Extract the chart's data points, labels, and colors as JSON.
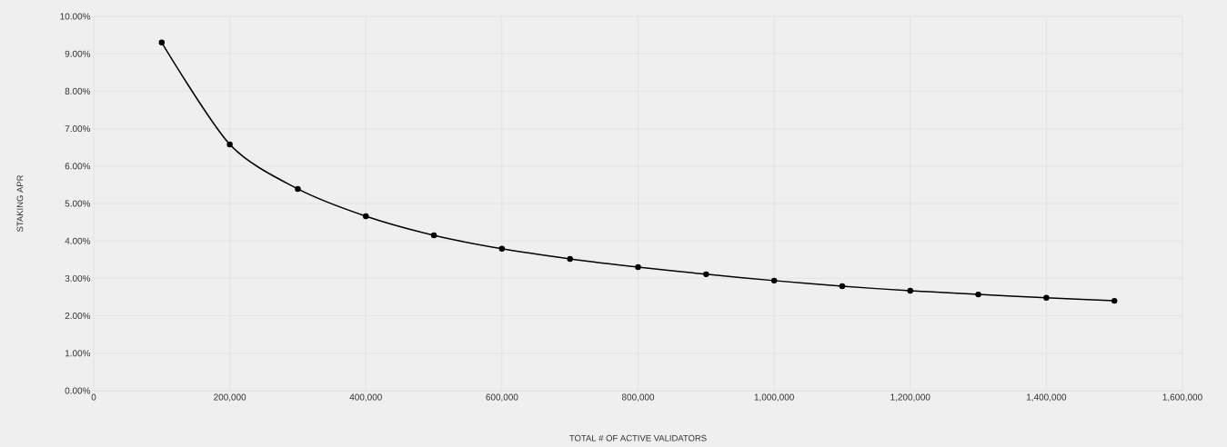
{
  "chart_data": {
    "type": "line",
    "xlabel": "TOTAL # OF ACTIVE VALIDATORS",
    "ylabel": "STAKING APR",
    "x": [
      100000,
      200000,
      300000,
      400000,
      500000,
      600000,
      700000,
      800000,
      900000,
      1000000,
      1100000,
      1200000,
      1300000,
      1400000,
      1500000
    ],
    "values": [
      9.3,
      6.58,
      5.39,
      4.66,
      4.15,
      3.79,
      3.52,
      3.3,
      3.11,
      2.94,
      2.79,
      2.67,
      2.57,
      2.48,
      2.4
    ],
    "color": "#000000",
    "marker": "circle",
    "line_style": "solid",
    "grid": true,
    "xlim": [
      0,
      1600000
    ],
    "xticks": [
      0,
      {
        "value": 200000,
        "label": "200,000"
      },
      {
        "value": 400000,
        "label": "400,000"
      },
      {
        "value": 600000,
        "label": "600,000"
      },
      {
        "value": 800000,
        "label": "800,000"
      },
      {
        "value": 1000000,
        "label": "1,000,000"
      },
      {
        "value": 1200000,
        "label": "1,200,000"
      },
      {
        "value": 1400000,
        "label": "1,400,000"
      },
      {
        "value": 1600000,
        "label": "1,600,000"
      }
    ],
    "ylim": [
      0,
      10
    ],
    "yticks": [
      {
        "value": 0,
        "label": "0.00%"
      },
      {
        "value": 1,
        "label": "1.00%"
      },
      {
        "value": 2,
        "label": "2.00%"
      },
      {
        "value": 3,
        "label": "3.00%"
      },
      {
        "value": 4,
        "label": "4.00%"
      },
      {
        "value": 5,
        "label": "5.00%"
      },
      {
        "value": 6,
        "label": "6.00%"
      },
      {
        "value": 7,
        "label": "7.00%"
      },
      {
        "value": 8,
        "label": "8.00%"
      },
      {
        "value": 9,
        "label": "9.00%"
      },
      {
        "value": 10,
        "label": "10.00%"
      }
    ]
  }
}
